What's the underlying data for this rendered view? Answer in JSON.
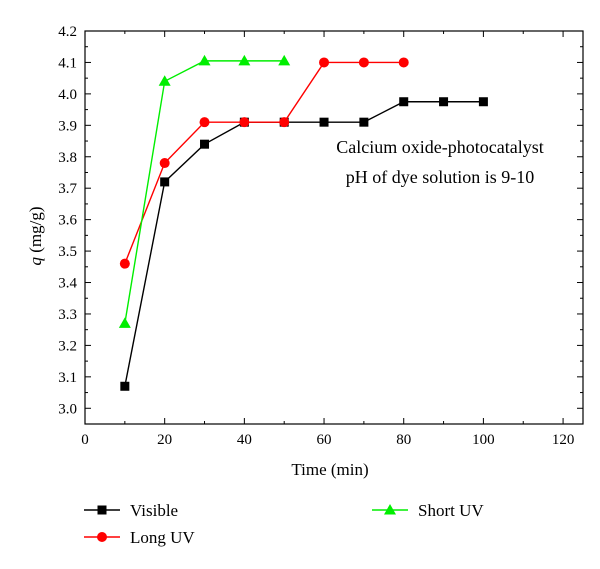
{
  "chart_data": {
    "type": "line",
    "xlabel": "Time (min)",
    "ylabel_italic": "q",
    "ylabel_rest": " (mg/g)",
    "xlim": [
      0,
      125
    ],
    "ylim": [
      2.95,
      4.2
    ],
    "xticks": [
      0,
      20,
      40,
      60,
      80,
      100,
      120
    ],
    "yticks": [
      3.0,
      3.1,
      3.2,
      3.3,
      3.4,
      3.5,
      3.6,
      3.7,
      3.8,
      3.9,
      4.0,
      4.1,
      4.2
    ],
    "ytick_labels": [
      "3.0",
      "3.1",
      "3.2",
      "3.3",
      "3.4",
      "3.5",
      "3.6",
      "3.7",
      "3.8",
      "3.9",
      "4.0",
      "4.1",
      "4.2"
    ],
    "grid": false,
    "legend_position": "bottom",
    "annotations": [
      "Calcium oxide-photocatalyst",
      "pH of dye solution is 9-10"
    ],
    "series": [
      {
        "name": "Visible",
        "color": "#000000",
        "marker": "square",
        "x": [
          10,
          20,
          30,
          40,
          50,
          60,
          70,
          80,
          90,
          100
        ],
        "y": [
          3.07,
          3.72,
          3.84,
          3.91,
          3.91,
          3.91,
          3.91,
          3.975,
          3.975,
          3.975
        ]
      },
      {
        "name": "Long UV",
        "color": "#ff0000",
        "marker": "circle",
        "x": [
          10,
          20,
          30,
          40,
          50,
          60,
          70,
          80
        ],
        "y": [
          3.46,
          3.78,
          3.91,
          3.91,
          3.91,
          4.1,
          4.1,
          4.1
        ]
      },
      {
        "name": "Short UV",
        "color": "#00ee00",
        "marker": "triangle",
        "x": [
          10,
          20,
          30,
          40,
          50
        ],
        "y": [
          3.27,
          4.04,
          4.105,
          4.105,
          4.105
        ]
      }
    ]
  }
}
